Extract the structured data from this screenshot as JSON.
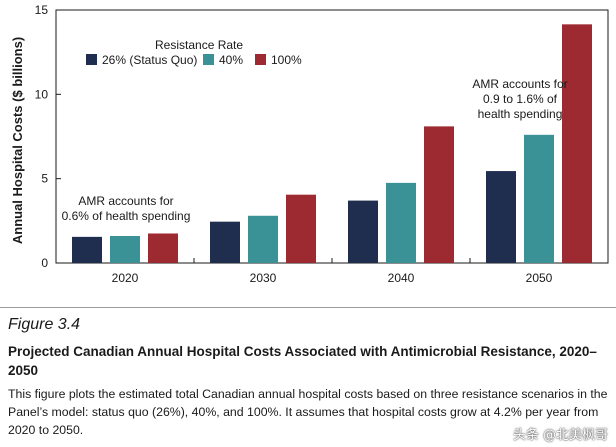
{
  "chart_data": {
    "type": "bar",
    "categories": [
      "2020",
      "2030",
      "2040",
      "2050"
    ],
    "ylabel": "Annual Hospital Costs ($ billions)",
    "xlabel": "",
    "ylim": [
      0,
      15
    ],
    "yticks": [
      0,
      5,
      10,
      15
    ],
    "legend_title": "Resistance Rate",
    "legend_position": "top-left",
    "grid": false,
    "series": [
      {
        "name": "26% (Status Quo)",
        "color": "#1f2d4e",
        "values": [
          1.55,
          2.45,
          3.7,
          5.45
        ]
      },
      {
        "name": "40%",
        "color": "#3a9296",
        "values": [
          1.6,
          2.8,
          4.75,
          7.6
        ]
      },
      {
        "name": "100%",
        "color": "#9e2a31",
        "values": [
          1.75,
          4.05,
          8.1,
          14.15
        ]
      }
    ],
    "annotations": [
      {
        "lines": [
          "AMR accounts for",
          "0.6% of health spending"
        ]
      },
      {
        "lines": [
          "AMR accounts for",
          "0.9 to 1.6% of",
          "health spending"
        ]
      }
    ]
  },
  "figure": {
    "label": "Figure 3.4",
    "title": "Projected Canadian Annual Hospital Costs Associated with Antimicrobial Resistance, 2020–2050",
    "body": "This figure plots the estimated total Canadian annual hospital costs based on three resistance scenarios in the Panel’s model: status quo (26%), 40%, and 100%. It assumes that hospital costs grow at 4.2% per year from 2020 to 2050."
  },
  "watermark": "头条 @北美枫哥"
}
